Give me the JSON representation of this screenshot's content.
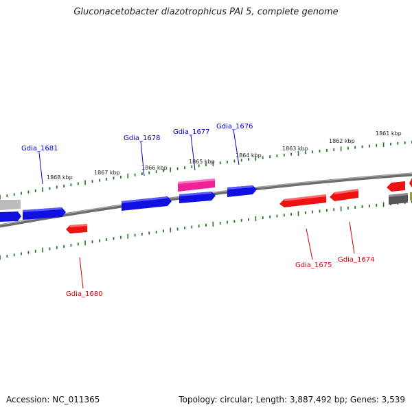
{
  "title": "Gluconacetobacter diazotrophicus PAI 5, complete genome",
  "accession": "Accession: NC_011365",
  "topology": "Topology: circular; Length: 3,887,492 bp; Genes: 3,539",
  "scale_labels": [
    "1868 kbp",
    "1867 kbp",
    "1866 kbp",
    "1865 kbp",
    "1864 kbp",
    "1863 kbp",
    "1862 kbp",
    "1861 kbp"
  ],
  "gene_labels": [
    {
      "name": "Gdia_1681",
      "strand": "forward"
    },
    {
      "name": "Gdia_1678",
      "strand": "forward"
    },
    {
      "name": "Gdia_1677",
      "strand": "forward"
    },
    {
      "name": "Gdia_1676",
      "strand": "forward"
    },
    {
      "name": "Gdia_1680",
      "strand": "reverse"
    },
    {
      "name": "Gdia_1675",
      "strand": "reverse"
    },
    {
      "name": "Gdia_1674",
      "strand": "reverse"
    }
  ],
  "colors": {
    "forward": "#0000cc",
    "reverse": "#cc0000",
    "forward_gene": "#1010e0",
    "reverse_gene": "#ee1111",
    "rna_gene": "#ee2299",
    "other_gene": "#555555",
    "pseudo_gene": "#bbbbbb",
    "backbone": "#888888",
    "ticks": "#227722"
  }
}
